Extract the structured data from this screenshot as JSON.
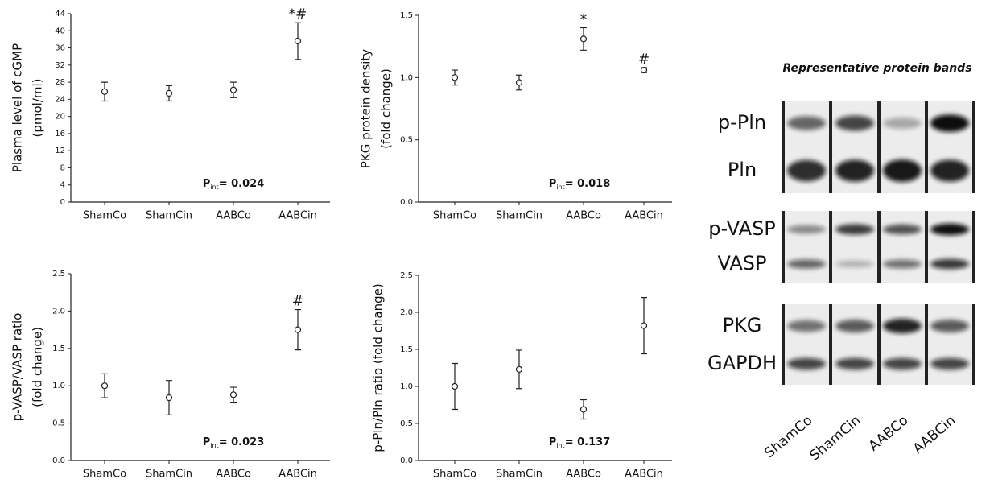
{
  "chart_data": [
    {
      "type": "point",
      "ylabel": [
        "Plasma level of cGMP",
        "(pmol/ml)"
      ],
      "categories": [
        "ShamCo",
        "ShamCin",
        "AABCo",
        "AABCin"
      ],
      "values": [
        25.8,
        25.4,
        26.2,
        37.6
      ],
      "errors": [
        2.2,
        1.8,
        1.8,
        4.3
      ],
      "annotations": [
        null,
        null,
        null,
        "*#"
      ],
      "ylim": [
        0,
        44
      ],
      "yticks": [
        0,
        4,
        8,
        12,
        16,
        20,
        24,
        28,
        32,
        36,
        40,
        44
      ],
      "p_label": "P",
      "p_sub": "int",
      "p_value": "= 0.024"
    },
    {
      "type": "point",
      "ylabel": [
        "PKG protein density",
        "(fold change)"
      ],
      "categories": [
        "ShamCo",
        "ShamCin",
        "AABCo",
        "AABCin"
      ],
      "values": [
        1.0,
        0.96,
        1.31,
        1.06
      ],
      "errors": [
        0.06,
        0.06,
        0.09,
        0.02
      ],
      "annotations": [
        null,
        null,
        "*",
        "#"
      ],
      "ylim": [
        0,
        1.5
      ],
      "yticks": [
        {
          "value": 0,
          "label": "0.0"
        },
        0.5,
        {
          "value": 1,
          "label": "1.0"
        },
        1.5
      ],
      "p_label": "P",
      "p_sub": "int",
      "p_value": "= 0.018"
    },
    {
      "type": "point",
      "ylabel": [
        "p-VASP/VASP ratio",
        "(fold change)"
      ],
      "categories": [
        "ShamCo",
        "ShamCin",
        "AABCo",
        "AABCin"
      ],
      "values": [
        1.0,
        0.84,
        0.88,
        1.75
      ],
      "errors": [
        0.16,
        0.23,
        0.1,
        0.27
      ],
      "annotations": [
        null,
        null,
        null,
        "#"
      ],
      "ylim": [
        0,
        2.5
      ],
      "yticks": [
        {
          "value": 0,
          "label": "0.0"
        },
        0.5,
        {
          "value": 1,
          "label": "1.0"
        },
        1.5,
        {
          "value": 2,
          "label": "2.0"
        },
        2.5
      ],
      "p_label": "P",
      "p_sub": "int",
      "p_value": "= 0.023"
    },
    {
      "type": "point",
      "ylabel": [
        "p-Pln/Pln ratio (fold change)"
      ],
      "categories": [
        "ShamCo",
        "ShamCin",
        "AABCo",
        "AABCin"
      ],
      "values": [
        1.0,
        1.23,
        0.69,
        1.82
      ],
      "errors": [
        0.31,
        0.26,
        0.13,
        0.38
      ],
      "annotations": [
        null,
        null,
        null,
        null
      ],
      "ylim": [
        0,
        2.5
      ],
      "yticks": [
        {
          "value": 0,
          "label": "0.0"
        },
        0.5,
        {
          "value": 1,
          "label": "1.0"
        },
        1.5,
        {
          "value": 2,
          "label": "2.0"
        },
        2.5
      ],
      "p_label": "P",
      "p_sub": "int",
      "p_value": "= 0.137"
    }
  ],
  "blot": {
    "title": "Representative protein bands",
    "rows": [
      "p-Pln",
      "Pln",
      "p-VASP",
      "VASP",
      "PKG",
      "GAPDH"
    ],
    "lanes": [
      "ShamCo",
      "ShamCin",
      "AABCo",
      "AABCin"
    ]
  }
}
